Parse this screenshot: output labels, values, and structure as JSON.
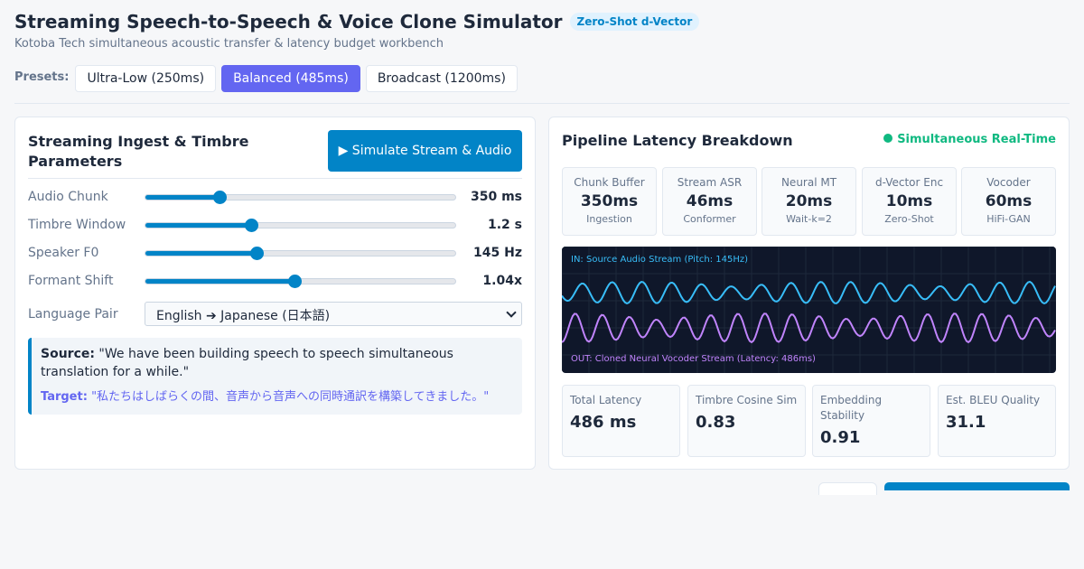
{
  "header": {
    "title": "Streaming Speech-to-Speech & Voice Clone Simulator",
    "badge": "Zero-Shot d-Vector",
    "subtitle": "Kotoba Tech simultaneous acoustic transfer & latency budget workbench"
  },
  "presets": {
    "label": "Presets:",
    "items": [
      {
        "label": "Ultra-Low (250ms)",
        "active": false
      },
      {
        "label": "Balanced (485ms)",
        "active": true
      },
      {
        "label": "Broadcast (1200ms)",
        "active": false
      }
    ]
  },
  "ingest": {
    "title": "Streaming Ingest & Timbre Parameters",
    "simulate_label": "▶ Simulate Stream & Audio",
    "params": [
      {
        "label": "Audio Chunk",
        "value": "350 ms",
        "level": 0.24
      },
      {
        "label": "Timbre Window",
        "value": "1.2 s",
        "level": 0.34
      },
      {
        "label": "Speaker F0",
        "value": "145 Hz",
        "level": 0.36
      },
      {
        "label": "Formant Shift",
        "value": "1.04x",
        "level": 0.48
      }
    ],
    "language_label": "Language Pair",
    "language_value": "English ➔ Japanese (日本語)",
    "source_label": "Source:",
    "source_text": "\"We have been building speech to speech simultaneous translation for a while.\"",
    "target_label": "Target:",
    "target_text": "\"私たちはしばらくの間、音声から音声への同時通訳を構築してきました。\""
  },
  "pipeline": {
    "title": "Pipeline Latency Breakdown",
    "status": "Simultaneous Real-Time",
    "stages": [
      {
        "name": "Chunk Buffer",
        "value": "350ms",
        "sub": "Ingestion"
      },
      {
        "name": "Stream ASR",
        "value": "46ms",
        "sub": "Conformer"
      },
      {
        "name": "Neural MT",
        "value": "20ms",
        "sub": "Wait-k=2"
      },
      {
        "name": "d-Vector Enc",
        "value": "10ms",
        "sub": "Zero-Shot"
      },
      {
        "name": "Vocoder",
        "value": "60ms",
        "sub": "HiFi-GAN"
      }
    ],
    "viz_in_label": "IN: Source Audio Stream (Pitch: 145Hz)",
    "viz_out_label": "OUT: Cloned Neural Vocoder Stream (Latency: 486ms)",
    "metrics": [
      {
        "label": "Total Latency",
        "value": "486 ms"
      },
      {
        "label": "Timbre Cosine Sim",
        "value": "0.83"
      },
      {
        "label": "Embedding Stability",
        "value": "0.91"
      },
      {
        "label": "Est. BLEU Quality",
        "value": "31.1"
      }
    ]
  },
  "colors": {
    "accent": "#0284c7",
    "preset_active": "#6366f1",
    "status_ok": "#10b981",
    "wave_in": "#38bdf8",
    "wave_out": "#c084fc"
  }
}
